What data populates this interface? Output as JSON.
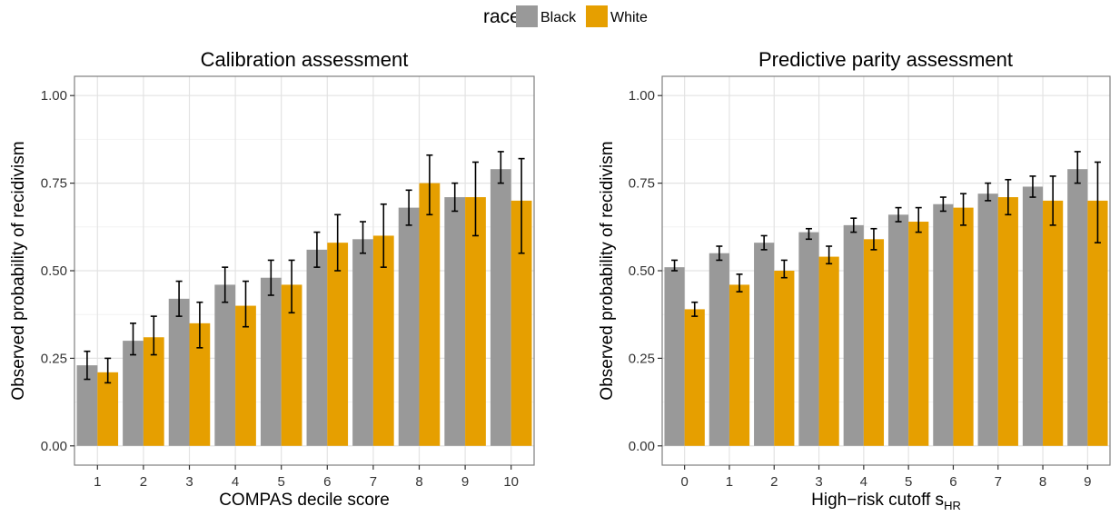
{
  "legend": {
    "title": "race",
    "items": [
      {
        "label": "Black",
        "color": "#999999"
      },
      {
        "label": "White",
        "color": "#E69F00"
      }
    ]
  },
  "chart_data": [
    {
      "type": "bar",
      "title": "Calibration assessment",
      "xlabel": "COMPAS decile score",
      "ylabel": "Observed probability of recidivism",
      "ylim": [
        0,
        1.0
      ],
      "yticks": [
        "0.00",
        "0.25",
        "0.50",
        "0.75",
        "1.00"
      ],
      "categories": [
        "1",
        "2",
        "3",
        "4",
        "5",
        "6",
        "7",
        "8",
        "9",
        "10"
      ],
      "series": [
        {
          "name": "Black",
          "color": "#999999",
          "values": [
            0.23,
            0.3,
            0.42,
            0.46,
            0.48,
            0.56,
            0.59,
            0.68,
            0.71,
            0.79
          ],
          "err_low": [
            0.19,
            0.26,
            0.37,
            0.41,
            0.43,
            0.51,
            0.55,
            0.63,
            0.67,
            0.75
          ],
          "err_high": [
            0.27,
            0.35,
            0.47,
            0.51,
            0.53,
            0.61,
            0.64,
            0.73,
            0.75,
            0.84
          ]
        },
        {
          "name": "White",
          "color": "#E69F00",
          "values": [
            0.21,
            0.31,
            0.35,
            0.4,
            0.46,
            0.58,
            0.6,
            0.75,
            0.71,
            0.7
          ],
          "err_low": [
            0.18,
            0.26,
            0.28,
            0.34,
            0.38,
            0.5,
            0.51,
            0.66,
            0.6,
            0.55
          ],
          "err_high": [
            0.25,
            0.37,
            0.41,
            0.47,
            0.53,
            0.66,
            0.69,
            0.83,
            0.81,
            0.82
          ]
        }
      ],
      "grid": true,
      "legend_position": "top"
    },
    {
      "type": "bar",
      "title": "Predictive parity assessment",
      "xlabel": "High−risk cutoff s",
      "xlabel_sub": "HR",
      "ylabel": "Observed probability of recidivism",
      "ylim": [
        0,
        1.0
      ],
      "yticks": [
        "0.00",
        "0.25",
        "0.50",
        "0.75",
        "1.00"
      ],
      "categories": [
        "0",
        "1",
        "2",
        "3",
        "4",
        "5",
        "6",
        "7",
        "8",
        "9"
      ],
      "series": [
        {
          "name": "Black",
          "color": "#999999",
          "values": [
            0.51,
            0.55,
            0.58,
            0.61,
            0.63,
            0.66,
            0.69,
            0.72,
            0.74,
            0.79
          ],
          "err_low": [
            0.5,
            0.53,
            0.56,
            0.59,
            0.61,
            0.64,
            0.67,
            0.7,
            0.71,
            0.75
          ],
          "err_high": [
            0.53,
            0.57,
            0.6,
            0.62,
            0.65,
            0.68,
            0.71,
            0.75,
            0.77,
            0.84
          ]
        },
        {
          "name": "White",
          "color": "#E69F00",
          "values": [
            0.39,
            0.46,
            0.5,
            0.54,
            0.59,
            0.64,
            0.68,
            0.71,
            0.7,
            0.7
          ],
          "err_low": [
            0.37,
            0.44,
            0.48,
            0.52,
            0.56,
            0.61,
            0.63,
            0.66,
            0.63,
            0.58
          ],
          "err_high": [
            0.41,
            0.49,
            0.53,
            0.57,
            0.62,
            0.68,
            0.72,
            0.76,
            0.77,
            0.81
          ]
        }
      ],
      "grid": true,
      "legend_position": "top"
    }
  ]
}
